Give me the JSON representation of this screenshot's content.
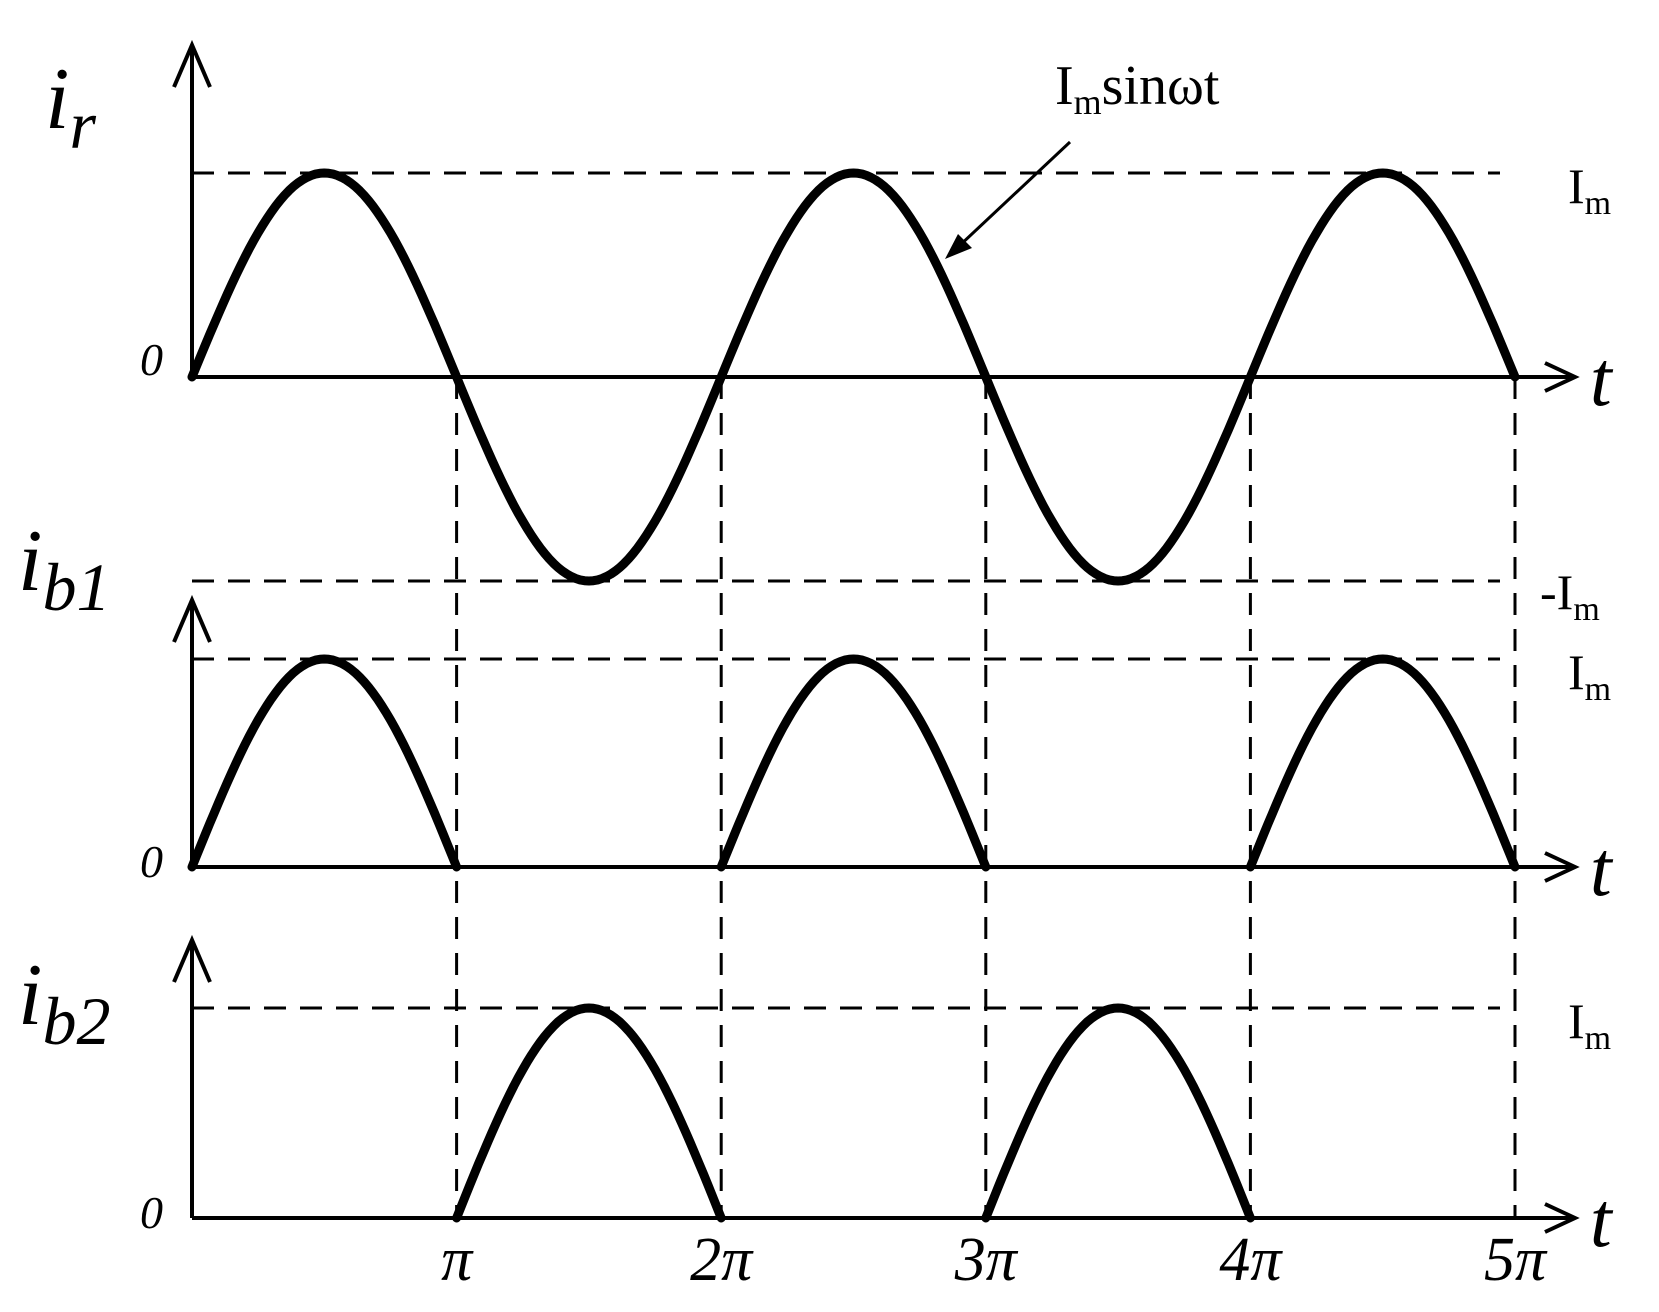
{
  "chart_data": [
    {
      "type": "line",
      "ylabel": {
        "main": "i",
        "sub": "r"
      },
      "origin_label": "0",
      "xlabel": "t",
      "annotation": {
        "main": "I",
        "sub": "m",
        "rest": "sinωt"
      },
      "ref_labels": [
        {
          "main": "I",
          "sub": "m",
          "y": 1
        },
        {
          "main": "-I",
          "sub": "m",
          "y": -1
        }
      ],
      "x_pi_range": [
        0,
        5
      ],
      "ylim": [
        -1,
        1
      ],
      "series": [
        {
          "kind": "sine",
          "amplitude": 1
        }
      ]
    },
    {
      "type": "line",
      "ylabel": {
        "main": "i",
        "sub": "b1"
      },
      "origin_label": "0",
      "xlabel": "t",
      "ref_labels": [
        {
          "main": "I",
          "sub": "m",
          "y": 1
        }
      ],
      "x_pi_range": [
        0,
        5
      ],
      "ylim": [
        0,
        1
      ],
      "series": [
        {
          "kind": "half-wave-positive",
          "lobes_pi": [
            [
              0,
              1
            ],
            [
              2,
              3
            ],
            [
              4,
              5
            ]
          ]
        }
      ]
    },
    {
      "type": "line",
      "ylabel": {
        "main": "i",
        "sub": "b2"
      },
      "origin_label": "0",
      "xlabel": "t",
      "ref_labels": [
        {
          "main": "I",
          "sub": "m",
          "y": 1
        }
      ],
      "x_pi_range": [
        0,
        5
      ],
      "ylim": [
        0,
        1
      ],
      "series": [
        {
          "kind": "half-wave-negative",
          "lobes_pi": [
            [
              1,
              2
            ],
            [
              3,
              4
            ]
          ]
        }
      ]
    }
  ],
  "x_ticks": [
    "π",
    "2π",
    "3π",
    "4π",
    "5π"
  ]
}
